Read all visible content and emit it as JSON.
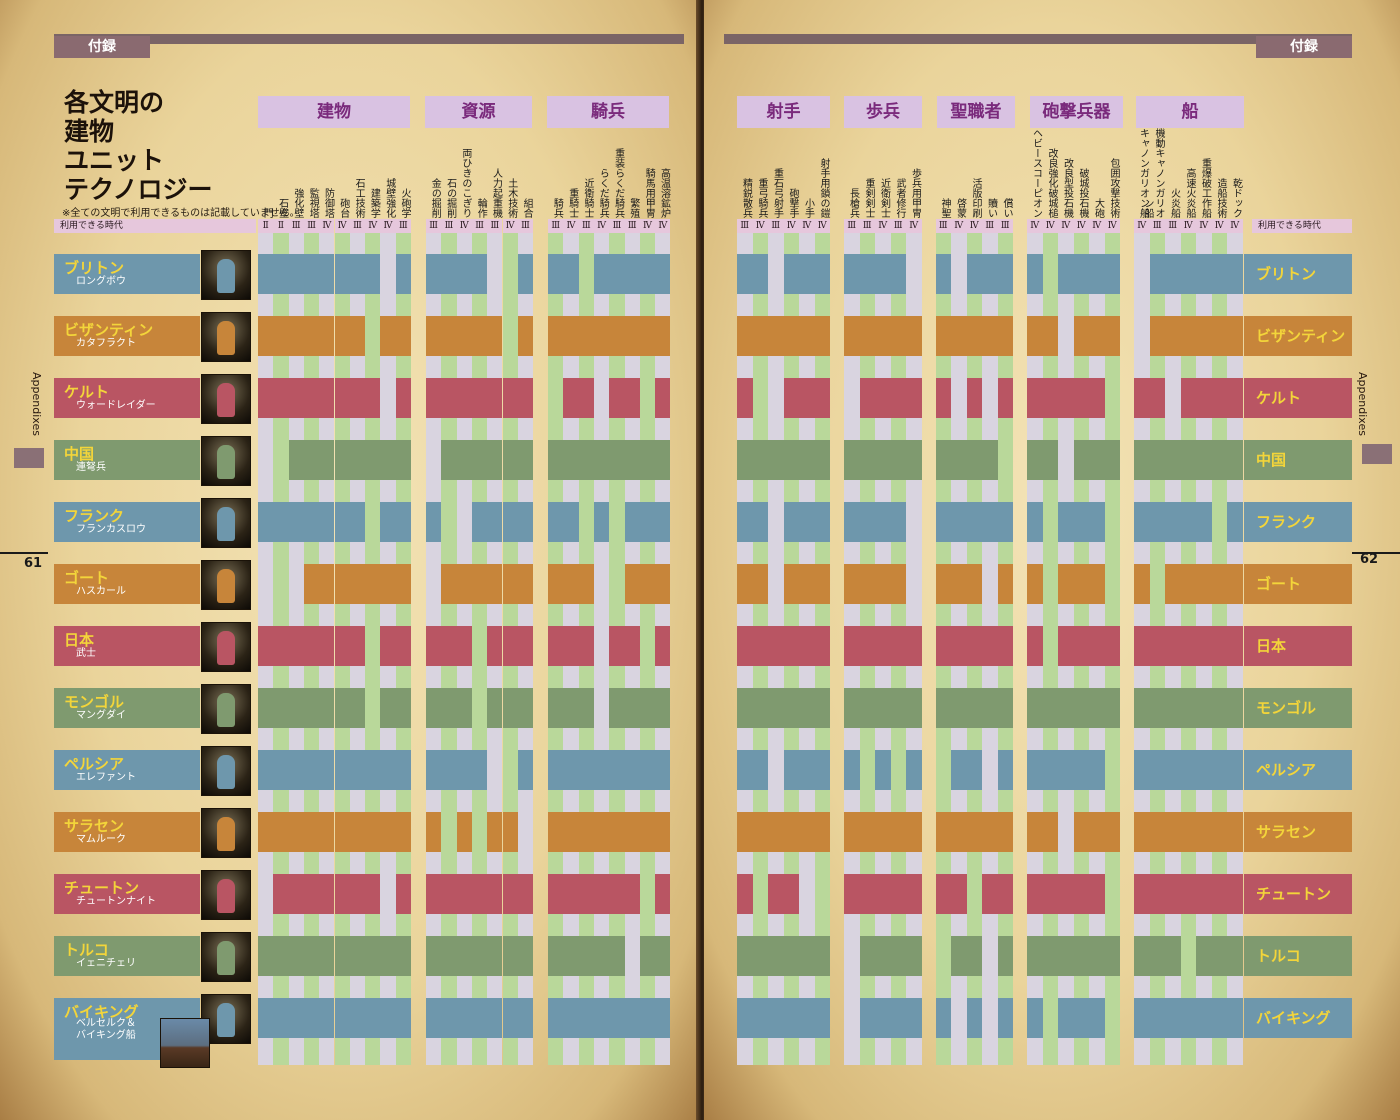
{
  "header": {
    "tag_left": "付録",
    "tag_right": "付録",
    "title_lines": [
      "各文明の",
      "建物",
      "ユニット",
      "テクノロジー"
    ],
    "note": "※全ての文明で利用できるものは記載していません。",
    "era_label": "利用できる時代"
  },
  "side": {
    "appendixes_left": "Appendixes",
    "appendixes_right": "Appendixes",
    "page_left": "61",
    "page_right": "62"
  },
  "categories": {
    "left": [
      "建物",
      "資源",
      "騎兵"
    ],
    "right": [
      "射手",
      "歩兵",
      "聖職者",
      "砲撃兵器",
      "船"
    ]
  },
  "columns_left": [
    {
      "label": "門",
      "era": "Ⅱ"
    },
    {
      "label": "石壁",
      "era": "Ⅱ"
    },
    {
      "label": "強化壁",
      "era": "Ⅲ"
    },
    {
      "label": "監視塔",
      "era": "Ⅲ"
    },
    {
      "label": "防御塔",
      "era": "Ⅳ"
    },
    {
      "label": "砲台",
      "era": "Ⅳ"
    },
    {
      "label": "石工技術",
      "era": "Ⅲ"
    },
    {
      "label": "建築学",
      "era": "Ⅳ"
    },
    {
      "label": "城壁強化",
      "era": "Ⅳ"
    },
    {
      "label": "火砲学",
      "era": "Ⅲ"
    },
    {
      "label": "金の掘削",
      "era": "Ⅲ"
    },
    {
      "label": "石の掘削",
      "era": "Ⅲ"
    },
    {
      "label": "両ひきのこぎり",
      "era": "Ⅳ"
    },
    {
      "label": "輪作",
      "era": "Ⅲ"
    },
    {
      "label": "人力起重機",
      "era": "Ⅲ"
    },
    {
      "label": "土木技術",
      "era": "Ⅳ"
    },
    {
      "label": "組合",
      "era": "Ⅲ"
    },
    {
      "label": "騎兵",
      "era": "Ⅲ"
    },
    {
      "label": "重騎士",
      "era": "Ⅳ"
    },
    {
      "label": "近衛騎士",
      "era": "Ⅲ"
    },
    {
      "label": "らくだ騎兵",
      "era": "Ⅳ"
    },
    {
      "label": "重装らくだ騎兵",
      "era": "Ⅲ"
    },
    {
      "label": "繁殖",
      "era": "Ⅲ"
    },
    {
      "label": "騎馬用甲冑",
      "era": "Ⅳ"
    },
    {
      "label": "高温溶鉱炉",
      "era": "Ⅳ"
    }
  ],
  "columns_right": [
    {
      "label": "精鋭散兵",
      "era": "Ⅲ"
    },
    {
      "label": "重弓騎兵",
      "era": "Ⅳ"
    },
    {
      "label": "重石弓射手",
      "era": "Ⅲ"
    },
    {
      "label": "砲撃手",
      "era": "Ⅳ"
    },
    {
      "label": "小手",
      "era": "Ⅳ"
    },
    {
      "label": "射手用鎖の鎧",
      "era": "Ⅳ"
    },
    {
      "label": "長槍兵",
      "era": "Ⅲ"
    },
    {
      "label": "重剣剣士",
      "era": "Ⅲ"
    },
    {
      "label": "近衛剣士",
      "era": "Ⅳ"
    },
    {
      "label": "武者修行",
      "era": "Ⅲ"
    },
    {
      "label": "歩兵用甲冑",
      "era": "Ⅳ"
    },
    {
      "label": "神聖",
      "era": "Ⅲ"
    },
    {
      "label": "啓蒙",
      "era": "Ⅳ"
    },
    {
      "label": "活版印刷",
      "era": "Ⅳ"
    },
    {
      "label": "贖い",
      "era": "Ⅲ"
    },
    {
      "label": "償い",
      "era": "Ⅲ"
    },
    {
      "label": "ヘビースコーピオン",
      "era": "Ⅳ"
    },
    {
      "label": "改良強化破城槌",
      "era": "Ⅳ"
    },
    {
      "label": "改良型投石機",
      "era": "Ⅳ"
    },
    {
      "label": "破城投石機",
      "era": "Ⅳ"
    },
    {
      "label": "大砲",
      "era": "Ⅳ"
    },
    {
      "label": "包囲攻撃技術",
      "era": "Ⅳ"
    },
    {
      "label": "キャノンガリオン船",
      "era": "Ⅳ"
    },
    {
      "label": "機動キャノンガリオン船",
      "era": "Ⅲ"
    },
    {
      "label": "火炎船",
      "era": "Ⅲ"
    },
    {
      "label": "高速火炎船",
      "era": "Ⅳ"
    },
    {
      "label": "重爆破工作船",
      "era": "Ⅳ"
    },
    {
      "label": "造船技術",
      "era": "Ⅳ"
    },
    {
      "label": "乾ドック",
      "era": "Ⅳ"
    }
  ],
  "civilizations": [
    {
      "name": "ブリトン",
      "unit": "ロングボウ",
      "color": "#6e97ac"
    },
    {
      "name": "ビザンティン",
      "unit": "カタフラクト",
      "color": "#c7853a"
    },
    {
      "name": "ケルト",
      "unit": "ウォードレイダー",
      "color": "#b95563"
    },
    {
      "name": "中国",
      "unit": "連弩兵",
      "color": "#7f9a6f"
    },
    {
      "name": "フランク",
      "unit": "フランカスロウ",
      "color": "#6e97ac"
    },
    {
      "name": "ゴート",
      "unit": "ハスカール",
      "color": "#c7853a"
    },
    {
      "name": "日本",
      "unit": "武士",
      "color": "#b95563"
    },
    {
      "name": "モンゴル",
      "unit": "マングダイ",
      "color": "#7f9a6f"
    },
    {
      "name": "ペルシア",
      "unit": "エレファント",
      "color": "#6e97ac"
    },
    {
      "name": "サラセン",
      "unit": "マムルーク",
      "color": "#c7853a"
    },
    {
      "name": "チュートン",
      "unit": "チュートンナイト",
      "color": "#b95563"
    },
    {
      "name": "トルコ",
      "unit": "イェニチェリ",
      "color": "#7f9a6f"
    },
    {
      "name": "バイキング",
      "unit": "ベルセルク＆\nバイキング船",
      "color": "#6e97ac"
    }
  ],
  "availability_left": [
    "1111111101111100111011111",
    "1111111011111110111111111",
    "1111111101111111101101101",
    "0011111111011111111111111",
    "1111111011100111111010111",
    "0001111111011111111100111",
    "1111111011111011111101101",
    "1111111011111011111101111",
    "1111111111111100111111111",
    "1111111111101011011111111",
    "0111111101111111111111101",
    "1111111111111111111111011",
    "1111111111111111111111111"
  ],
  "availability_right": [
    "11011111110101111011110111111",
    "11111111111111111101110111111",
    "10011101111101011111101101111",
    "11111111111111101101111111111",
    "11011111110111111011101111101",
    "11011111110111011011101011111",
    "11111111111111111011111111111",
    "11111111111111111111111111111",
    "11011110101011011111101111111",
    "11111111111111111101111111111",
    "10110011111110111111101111111",
    "11111101111011011111111110111",
    "11111101111101011011101111111"
  ]
}
